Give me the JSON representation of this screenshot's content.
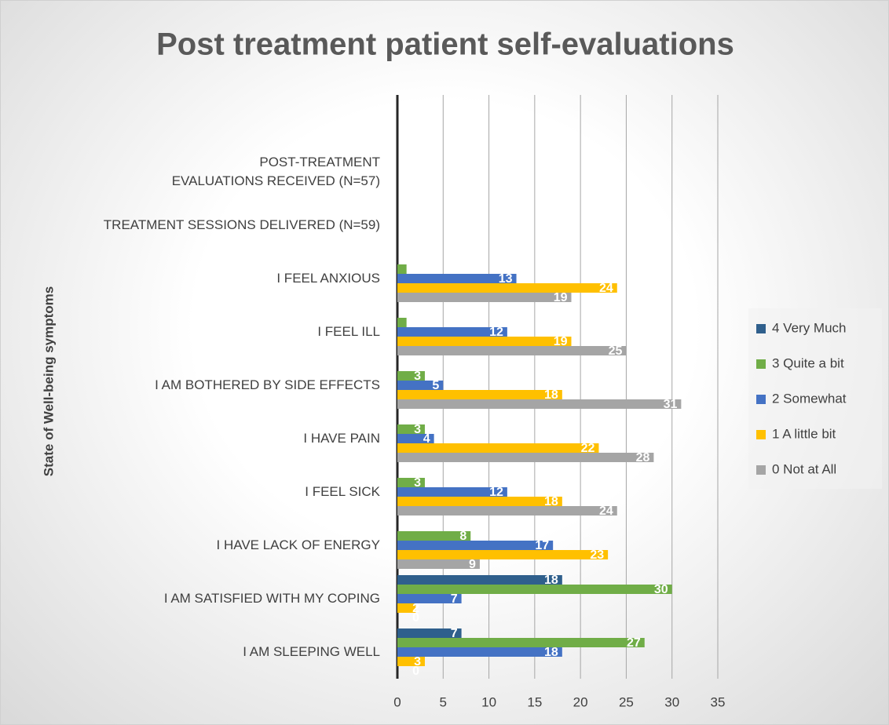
{
  "chart_data": {
    "type": "hbar",
    "title": "Post treatment patient self-evaluations",
    "y_label": "State of Well-being symptoms",
    "categories": [
      "POST-TREATMENT EVALUATIONS RECEIVED (N=57)",
      "TREATMENT SESSIONS DELIVERED (N=59)",
      "I FEEL ANXIOUS",
      "I FEEL ILL",
      "I AM BOTHERED BY SIDE EFFECTS",
      "I HAVE PAIN",
      "I FEEL SICK",
      "I HAVE LACK OF ENERGY",
      "I AM SATISFIED WITH MY COPING",
      "I AM SLEEPING WELL"
    ],
    "series": [
      {
        "name": "4 Very Much",
        "color": "#2f5f8c",
        "values": [
          null,
          null,
          null,
          null,
          null,
          null,
          null,
          0,
          18,
          7
        ]
      },
      {
        "name": "3 Quite a bit",
        "color": "#70ad47",
        "values": [
          null,
          null,
          1,
          1,
          3,
          3,
          3,
          8,
          30,
          27
        ]
      },
      {
        "name": "2 Somewhat",
        "color": "#4472c4",
        "values": [
          null,
          null,
          13,
          12,
          5,
          4,
          12,
          17,
          7,
          18
        ]
      },
      {
        "name": "1 A little bit",
        "color": "#ffc000",
        "values": [
          null,
          null,
          24,
          19,
          18,
          22,
          18,
          23,
          2,
          3
        ]
      },
      {
        "name": "0 Not at All",
        "color": "#a5a5a5",
        "values": [
          null,
          null,
          19,
          25,
          31,
          28,
          24,
          9,
          0,
          0
        ]
      }
    ],
    "xlim": [
      0,
      35
    ],
    "xticks": [
      0,
      5,
      10,
      15,
      20,
      25,
      30,
      35
    ],
    "grid": true,
    "legend": "right"
  }
}
